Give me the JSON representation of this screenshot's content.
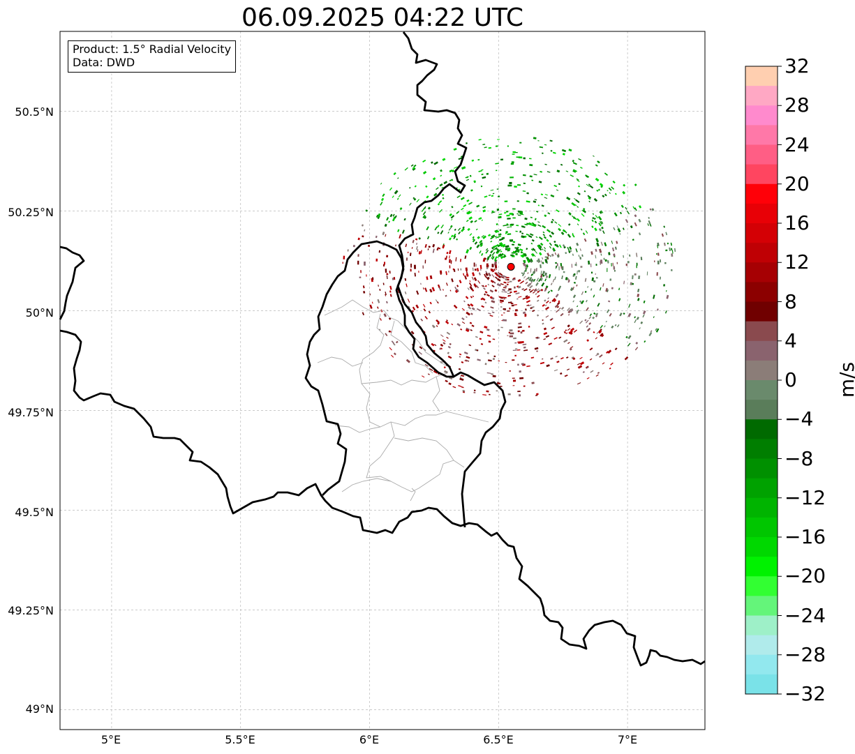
{
  "title": "06.09.2025 04:22 UTC",
  "info_box": {
    "product": "Product: 1.5° Radial Velocity",
    "data": "Data: DWD"
  },
  "axes": {
    "lat_labels": [
      "50.5°N",
      "50.25°N",
      "50°N",
      "49.75°N",
      "49.5°N",
      "49.25°N",
      "49°N"
    ],
    "lon_labels": [
      "5°E",
      "5.5°E",
      "6°E",
      "6.5°E",
      "7°E"
    ],
    "lat_values": [
      50.5,
      50.25,
      50.0,
      49.75,
      49.5,
      49.25,
      49.0
    ],
    "lon_values": [
      5.0,
      5.5,
      6.0,
      6.5,
      7.0
    ],
    "lon_range": [
      4.8,
      7.3
    ],
    "lat_range": [
      48.95,
      50.7
    ],
    "grid": true
  },
  "radar_site": {
    "lon": 6.548,
    "lat": 50.11,
    "color": "#ff0000"
  },
  "colorbar": {
    "unit": "m/s",
    "range": [
      -32,
      32
    ],
    "tick_labels": [
      "32",
      "28",
      "24",
      "20",
      "16",
      "12",
      "8",
      "4",
      "0",
      "−4",
      "−8",
      "−12",
      "−16",
      "−20",
      "−24",
      "−28",
      "−32"
    ],
    "tick_values": [
      32,
      28,
      24,
      20,
      16,
      12,
      8,
      4,
      0,
      -4,
      -8,
      -12,
      -16,
      -20,
      -24,
      -28,
      -32
    ],
    "colors_top_to_bottom": [
      "#ffcfb0",
      "#ffa8c4",
      "#ff8acd",
      "#ff78a8",
      "#ff5e85",
      "#ff4560",
      "#ff0008",
      "#e80006",
      "#d40005",
      "#bf0004",
      "#a60003",
      "#8c0000",
      "#700000",
      "#8a4a4e",
      "#8a636e",
      "#8b7d78",
      "#6a8a6c",
      "#5a7d5a",
      "#006a00",
      "#007e00",
      "#009000",
      "#00a200",
      "#00b400",
      "#00c600",
      "#00d800",
      "#00f200",
      "#32ff32",
      "#64f57a",
      "#9ef0c8",
      "#b0ebeb",
      "#92e8ee",
      "#7ae2e8"
    ]
  }
}
